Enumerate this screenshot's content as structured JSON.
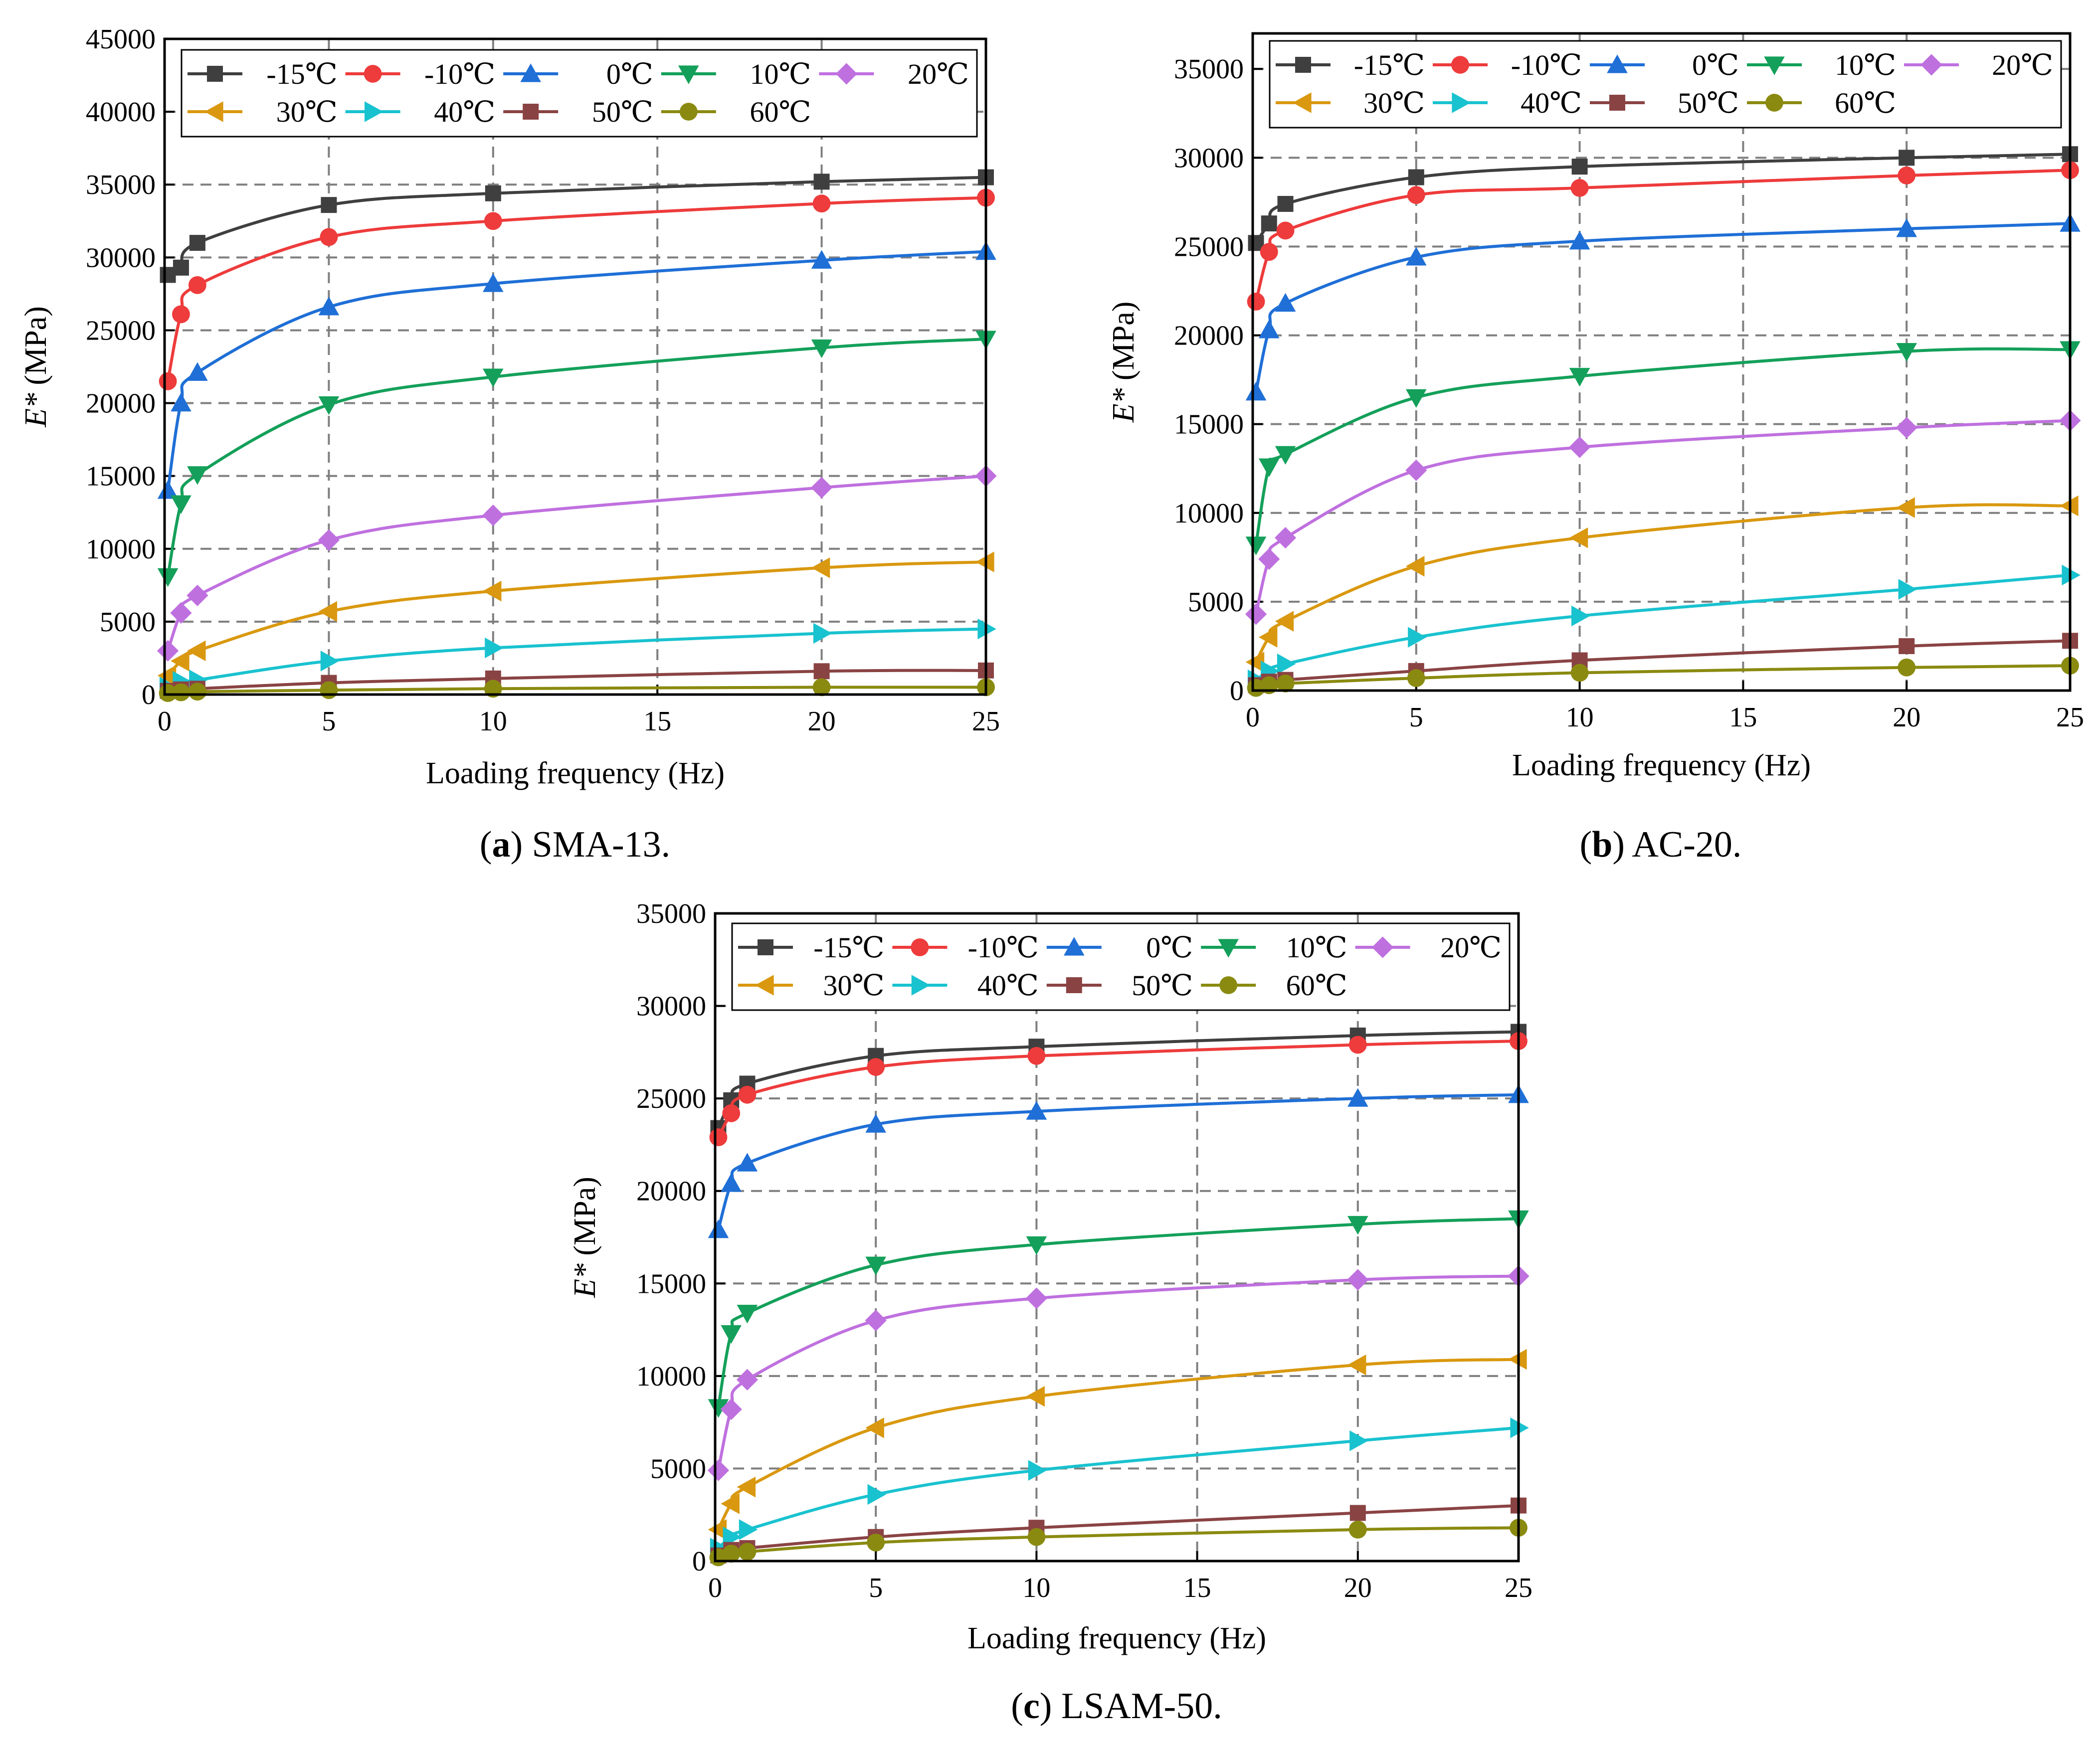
{
  "figure": {
    "legend_order": [
      "-15℃",
      "-10℃",
      "0℃",
      "10℃",
      "20℃",
      "30℃",
      "40℃",
      "50℃",
      "60℃"
    ],
    "series_style": {
      "-15℃": {
        "color": "#3f3f3f",
        "marker": "square"
      },
      "-10℃": {
        "color": "#ee3b3b",
        "marker": "circle"
      },
      "0℃": {
        "color": "#1f6fd6",
        "marker": "triangle-up"
      },
      "10℃": {
        "color": "#14a05a",
        "marker": "triangle-down"
      },
      "20℃": {
        "color": "#bf70df",
        "marker": "diamond"
      },
      "30℃": {
        "color": "#d9980f",
        "marker": "triangle-left"
      },
      "40℃": {
        "color": "#19c2cf",
        "marker": "triangle-right"
      },
      "50℃": {
        "color": "#8a4343",
        "marker": "square"
      },
      "60℃": {
        "color": "#8a8a10",
        "marker": "circle"
      }
    }
  },
  "chart_data": [
    {
      "type": "line",
      "caption_letter": "a",
      "caption_text": " SMA-13.",
      "xlabel": "Loading frequency (Hz)",
      "ylabel_italic": "E*",
      "ylabel_rest": " (MPa)",
      "xlim": [
        0,
        25
      ],
      "ylim": [
        0,
        45000
      ],
      "xticks": [
        0,
        5,
        10,
        15,
        20,
        25
      ],
      "yticks": [
        0,
        5000,
        10000,
        15000,
        20000,
        25000,
        30000,
        35000,
        40000,
        45000
      ],
      "legend_position": "top",
      "grid": "dashed",
      "x": [
        0.1,
        0.5,
        1,
        5,
        10,
        20,
        25
      ],
      "series": [
        {
          "name": "-15℃",
          "values": [
            28800,
            29300,
            31000,
            33600,
            34400,
            35200,
            35500
          ]
        },
        {
          "name": "-10℃",
          "values": [
            21500,
            26100,
            28100,
            31400,
            32500,
            33700,
            34100
          ]
        },
        {
          "name": "0℃",
          "values": [
            14000,
            20000,
            22100,
            26600,
            28200,
            29800,
            30400
          ]
        },
        {
          "name": "10℃",
          "values": [
            8100,
            13100,
            15100,
            19900,
            21800,
            23800,
            24400
          ]
        },
        {
          "name": "20℃",
          "values": [
            3000,
            5600,
            6800,
            10600,
            12300,
            14200,
            15000
          ]
        },
        {
          "name": "30℃",
          "values": [
            1300,
            2300,
            3000,
            5700,
            7100,
            8700,
            9100
          ]
        },
        {
          "name": "40℃",
          "values": [
            500,
            900,
            1000,
            2300,
            3200,
            4200,
            4500
          ]
        },
        {
          "name": "50℃",
          "values": [
            250,
            350,
            400,
            800,
            1100,
            1600,
            1650
          ]
        },
        {
          "name": "60℃",
          "values": [
            100,
            150,
            200,
            300,
            400,
            500,
            500
          ]
        }
      ]
    },
    {
      "type": "line",
      "caption_letter": "b",
      "caption_text": " AC-20.",
      "xlabel": "Loading frequency (Hz)",
      "ylabel_italic": "E*",
      "ylabel_rest": " (MPa)",
      "xlim": [
        0,
        25
      ],
      "ylim": [
        0,
        37000
      ],
      "xticks": [
        0,
        5,
        10,
        15,
        20,
        25
      ],
      "yticks": [
        0,
        5000,
        10000,
        15000,
        20000,
        25000,
        30000,
        35000
      ],
      "legend_position": "top",
      "grid": "dashed",
      "x": [
        0.1,
        0.5,
        1,
        5,
        10,
        20,
        25
      ],
      "series": [
        {
          "name": "-15℃",
          "values": [
            25200,
            26300,
            27400,
            28900,
            29500,
            30000,
            30200
          ]
        },
        {
          "name": "-10℃",
          "values": [
            21900,
            24700,
            25900,
            27900,
            28300,
            29000,
            29300
          ]
        },
        {
          "name": "0℃",
          "values": [
            16800,
            20300,
            21800,
            24400,
            25300,
            26000,
            26300
          ]
        },
        {
          "name": "10℃",
          "values": [
            8200,
            12600,
            13300,
            16500,
            17700,
            19100,
            19200
          ]
        },
        {
          "name": "20℃",
          "values": [
            4300,
            7400,
            8600,
            12400,
            13700,
            14800,
            15200
          ]
        },
        {
          "name": "30℃",
          "values": [
            1600,
            3000,
            3900,
            7000,
            8600,
            10300,
            10400
          ]
        },
        {
          "name": "40℃",
          "values": [
            600,
            1100,
            1500,
            3000,
            4200,
            5700,
            6500
          ]
        },
        {
          "name": "50℃",
          "values": [
            300,
            500,
            600,
            1100,
            1700,
            2500,
            2800
          ]
        },
        {
          "name": "60℃",
          "values": [
            150,
            300,
            400,
            700,
            1000,
            1300,
            1400
          ]
        }
      ]
    },
    {
      "type": "line",
      "caption_letter": "c",
      "caption_text": " LSAM-50.",
      "xlabel": "Loading frequency (Hz)",
      "ylabel_italic": "E*",
      "ylabel_rest": " (MPa)",
      "xlim": [
        0,
        25
      ],
      "ylim": [
        0,
        35000
      ],
      "xticks": [
        0,
        5,
        10,
        15,
        20,
        25
      ],
      "yticks": [
        0,
        5000,
        10000,
        15000,
        20000,
        25000,
        30000,
        35000
      ],
      "legend_position": "top",
      "grid": "dashed",
      "x": [
        0.1,
        0.5,
        1,
        5,
        10,
        20,
        25
      ],
      "series": [
        {
          "name": "-15℃",
          "values": [
            23400,
            24900,
            25800,
            27300,
            27800,
            28400,
            28600
          ]
        },
        {
          "name": "-10℃",
          "values": [
            22900,
            24200,
            25200,
            26700,
            27300,
            27900,
            28100
          ]
        },
        {
          "name": "0℃",
          "values": [
            17900,
            20400,
            21500,
            23600,
            24300,
            25000,
            25200
          ]
        },
        {
          "name": "10℃",
          "values": [
            8300,
            12300,
            13400,
            16000,
            17100,
            18200,
            18500
          ]
        },
        {
          "name": "20℃",
          "values": [
            4900,
            8200,
            9800,
            13000,
            14200,
            15200,
            15400
          ]
        },
        {
          "name": "30℃",
          "values": [
            1700,
            3100,
            4000,
            7200,
            8900,
            10600,
            10900
          ]
        },
        {
          "name": "40℃",
          "values": [
            700,
            1300,
            1700,
            3600,
            4900,
            6500,
            7200
          ]
        },
        {
          "name": "50℃",
          "values": [
            300,
            600,
            700,
            1300,
            1800,
            2600,
            3000
          ]
        },
        {
          "name": "60℃",
          "values": [
            200,
            400,
            500,
            1000,
            1300,
            1700,
            1800
          ]
        }
      ]
    }
  ]
}
